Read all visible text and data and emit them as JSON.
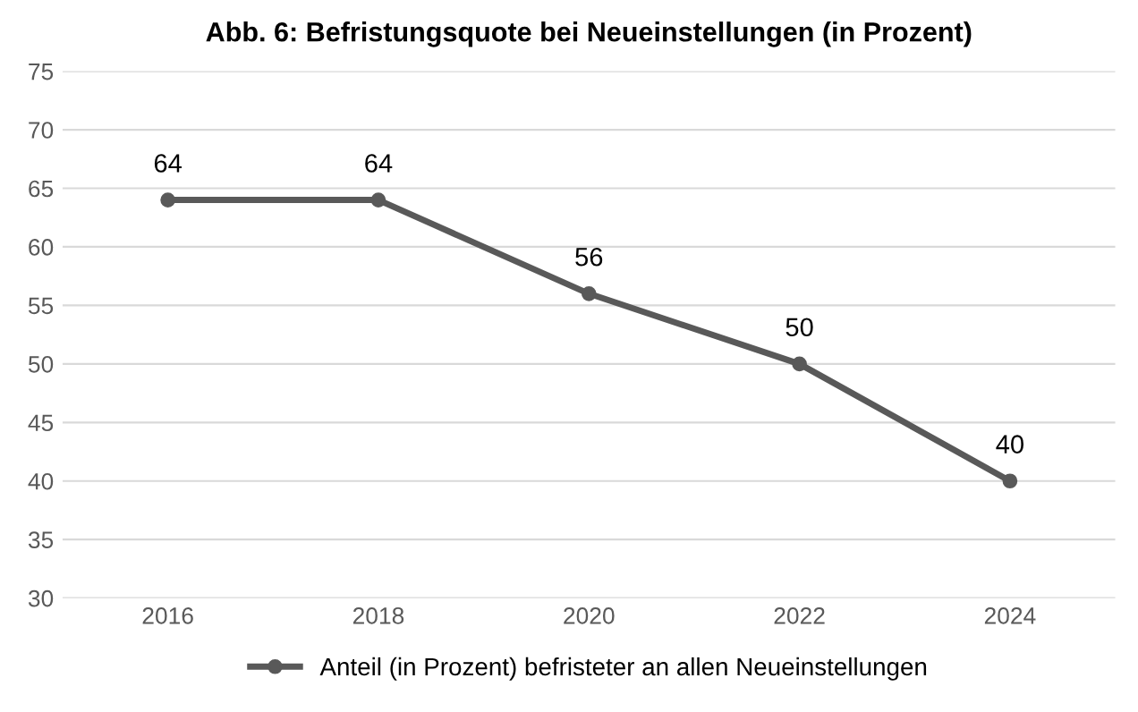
{
  "chart_data": {
    "type": "line",
    "title": "Abb. 6: Befristungsquote bei Neueinstellungen (in Prozent)",
    "categories": [
      "2016",
      "2018",
      "2020",
      "2022",
      "2024"
    ],
    "series": [
      {
        "name": "Anteil (in Prozent) befristeter an allen Neueinstellungen",
        "color": "#595959",
        "values": [
          64,
          64,
          56,
          50,
          40
        ]
      }
    ],
    "ylim": [
      30,
      75
    ],
    "yticks": [
      30,
      35,
      40,
      45,
      50,
      55,
      60,
      65,
      70,
      75
    ],
    "grid": "y",
    "legend": "bottom",
    "marker": "circle",
    "line_style": "solid",
    "data_labels": true
  }
}
